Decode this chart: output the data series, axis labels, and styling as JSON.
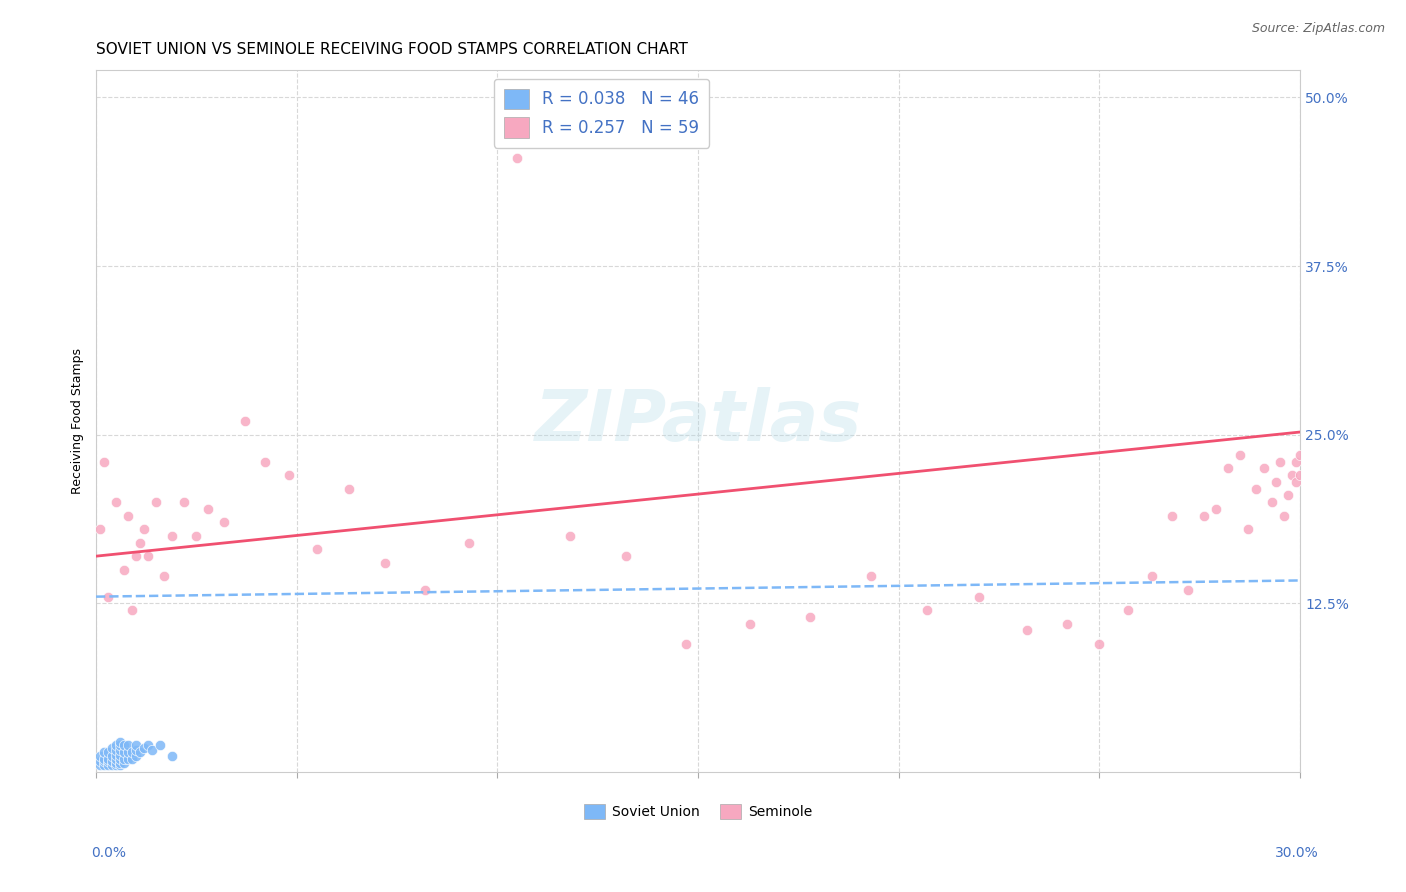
{
  "title": "SOVIET UNION VS SEMINOLE RECEIVING FOOD STAMPS CORRELATION CHART",
  "source": "Source: ZipAtlas.com",
  "ylabel": "Receiving Food Stamps",
  "xlim": [
    0.0,
    0.3
  ],
  "ylim": [
    0.0,
    0.52
  ],
  "soviet_color": "#7eb8f7",
  "seminole_color": "#f7a8c0",
  "soviet_line_color": "#7eb8f7",
  "seminole_line_color": "#f05070",
  "axis_label_color": "#4472c4",
  "background_color": "#ffffff",
  "grid_color": "#d8d8d8",
  "su_x": [
    0.001,
    0.001,
    0.001,
    0.002,
    0.002,
    0.002,
    0.002,
    0.003,
    0.003,
    0.003,
    0.003,
    0.004,
    0.004,
    0.004,
    0.004,
    0.005,
    0.005,
    0.005,
    0.005,
    0.005,
    0.005,
    0.006,
    0.006,
    0.006,
    0.006,
    0.006,
    0.006,
    0.006,
    0.007,
    0.007,
    0.007,
    0.007,
    0.008,
    0.008,
    0.008,
    0.009,
    0.009,
    0.01,
    0.01,
    0.01,
    0.011,
    0.012,
    0.013,
    0.014,
    0.016,
    0.019
  ],
  "su_y": [
    0.005,
    0.008,
    0.012,
    0.005,
    0.008,
    0.01,
    0.015,
    0.005,
    0.008,
    0.01,
    0.015,
    0.005,
    0.008,
    0.012,
    0.018,
    0.005,
    0.007,
    0.01,
    0.013,
    0.016,
    0.02,
    0.005,
    0.007,
    0.01,
    0.013,
    0.016,
    0.02,
    0.022,
    0.007,
    0.01,
    0.015,
    0.02,
    0.01,
    0.015,
    0.02,
    0.01,
    0.015,
    0.012,
    0.016,
    0.02,
    0.015,
    0.018,
    0.02,
    0.016,
    0.02,
    0.012
  ],
  "sem_x": [
    0.001,
    0.002,
    0.003,
    0.005,
    0.007,
    0.008,
    0.009,
    0.01,
    0.011,
    0.012,
    0.013,
    0.015,
    0.017,
    0.019,
    0.022,
    0.025,
    0.028,
    0.032,
    0.037,
    0.042,
    0.048,
    0.055,
    0.063,
    0.072,
    0.082,
    0.093,
    0.105,
    0.118,
    0.132,
    0.147,
    0.163,
    0.178,
    0.193,
    0.207,
    0.22,
    0.232,
    0.242,
    0.25,
    0.257,
    0.263,
    0.268,
    0.272,
    0.276,
    0.279,
    0.282,
    0.285,
    0.287,
    0.289,
    0.291,
    0.293,
    0.294,
    0.295,
    0.296,
    0.297,
    0.298,
    0.299,
    0.299,
    0.3,
    0.3
  ],
  "sem_y": [
    0.18,
    0.23,
    0.13,
    0.2,
    0.15,
    0.19,
    0.12,
    0.16,
    0.17,
    0.18,
    0.16,
    0.2,
    0.145,
    0.175,
    0.2,
    0.175,
    0.195,
    0.185,
    0.26,
    0.23,
    0.22,
    0.165,
    0.21,
    0.155,
    0.135,
    0.17,
    0.455,
    0.175,
    0.16,
    0.095,
    0.11,
    0.115,
    0.145,
    0.12,
    0.13,
    0.105,
    0.11,
    0.095,
    0.12,
    0.145,
    0.19,
    0.135,
    0.19,
    0.195,
    0.225,
    0.235,
    0.18,
    0.21,
    0.225,
    0.2,
    0.215,
    0.23,
    0.19,
    0.205,
    0.22,
    0.215,
    0.23,
    0.22,
    0.235
  ],
  "su_line_x0": 0.0,
  "su_line_x1": 0.3,
  "su_line_y0": 0.13,
  "su_line_y1": 0.142,
  "sem_line_x0": 0.0,
  "sem_line_x1": 0.3,
  "sem_line_y0": 0.16,
  "sem_line_y1": 0.252,
  "title_fontsize": 11,
  "ylabel_fontsize": 9,
  "tick_fontsize": 10,
  "source_fontsize": 9
}
